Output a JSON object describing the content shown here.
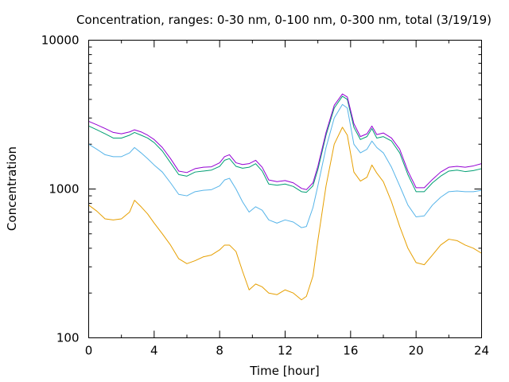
{
  "chart_data": {
    "type": "line",
    "title": "Concentration, ranges: 0-30 nm, 0-100 nm, 0-300 nm, total (3/19/19)",
    "xlabel": "Time [hour]",
    "ylabel": "Concentration",
    "xlim": [
      0,
      24
    ],
    "ylim": [
      100,
      10000
    ],
    "yscale": "log",
    "xticks": [
      0,
      4,
      8,
      12,
      16,
      20,
      24
    ],
    "xtick_labels": [
      "0",
      "4",
      "8",
      "12",
      "16",
      "20",
      "24"
    ],
    "yticks": [
      100,
      1000,
      10000
    ],
    "ytick_labels": [
      "100",
      "1000",
      "10000"
    ],
    "grid": false,
    "legend": "none",
    "series": [
      {
        "color": "#e69f00",
        "x": [
          0,
          0.5,
          1,
          1.5,
          2,
          2.5,
          2.8,
          3.2,
          3.6,
          4,
          4.5,
          5,
          5.5,
          6,
          6.5,
          7,
          7.5,
          8,
          8.3,
          8.6,
          9,
          9.4,
          9.8,
          10.2,
          10.6,
          11,
          11.5,
          12,
          12.5,
          13,
          13.3,
          13.7,
          14,
          14.5,
          15,
          15.5,
          15.8,
          16.2,
          16.6,
          17,
          17.3,
          17.6,
          18,
          18.5,
          19,
          19.5,
          20,
          20.5,
          21,
          21.5,
          22,
          22.5,
          23,
          23.5,
          24
        ],
        "y": [
          780,
          710,
          630,
          620,
          630,
          700,
          840,
          760,
          680,
          590,
          500,
          420,
          340,
          315,
          330,
          350,
          360,
          390,
          420,
          420,
          380,
          280,
          210,
          230,
          220,
          200,
          195,
          210,
          200,
          180,
          190,
          260,
          450,
          1050,
          2000,
          2600,
          2300,
          1300,
          1130,
          1200,
          1450,
          1280,
          1120,
          820,
          560,
          400,
          320,
          310,
          360,
          420,
          460,
          450,
          420,
          400,
          370
        ]
      },
      {
        "color": "#56b4e9",
        "x": [
          0,
          0.5,
          1,
          1.5,
          2,
          2.5,
          2.8,
          3.2,
          3.6,
          4,
          4.5,
          5,
          5.5,
          6,
          6.5,
          7,
          7.5,
          8,
          8.3,
          8.6,
          9,
          9.4,
          9.8,
          10.2,
          10.6,
          11,
          11.5,
          12,
          12.5,
          13,
          13.3,
          13.7,
          14,
          14.5,
          15,
          15.5,
          15.8,
          16.2,
          16.6,
          17,
          17.3,
          17.6,
          18,
          18.5,
          19,
          19.5,
          20,
          20.5,
          21,
          21.5,
          22,
          22.5,
          23,
          23.5,
          24
        ],
        "y": [
          2000,
          1850,
          1700,
          1650,
          1650,
          1750,
          1900,
          1750,
          1600,
          1450,
          1300,
          1100,
          920,
          900,
          960,
          980,
          990,
          1050,
          1150,
          1180,
          1000,
          820,
          700,
          760,
          720,
          620,
          590,
          620,
          600,
          550,
          560,
          750,
          1050,
          1900,
          3000,
          3700,
          3500,
          2000,
          1750,
          1850,
          2100,
          1900,
          1750,
          1400,
          1050,
          780,
          650,
          660,
          780,
          880,
          960,
          970,
          960,
          960,
          980
        ]
      },
      {
        "color": "#009e73",
        "x": [
          0,
          0.5,
          1,
          1.5,
          2,
          2.5,
          2.8,
          3.2,
          3.6,
          4,
          4.5,
          5,
          5.5,
          6,
          6.5,
          7,
          7.5,
          8,
          8.3,
          8.6,
          9,
          9.4,
          9.8,
          10.2,
          10.6,
          11,
          11.5,
          12,
          12.5,
          13,
          13.3,
          13.7,
          14,
          14.5,
          15,
          15.5,
          15.8,
          16.2,
          16.6,
          17,
          17.3,
          17.6,
          18,
          18.5,
          19,
          19.5,
          20,
          20.5,
          21,
          21.5,
          22,
          22.5,
          23,
          23.5,
          24
        ],
        "y": [
          2650,
          2500,
          2350,
          2200,
          2200,
          2300,
          2400,
          2300,
          2200,
          2050,
          1800,
          1500,
          1250,
          1220,
          1300,
          1320,
          1340,
          1420,
          1560,
          1600,
          1420,
          1380,
          1400,
          1480,
          1320,
          1080,
          1060,
          1080,
          1040,
          960,
          950,
          1050,
          1350,
          2300,
          3500,
          4200,
          4000,
          2600,
          2150,
          2250,
          2550,
          2200,
          2250,
          2100,
          1750,
          1250,
          960,
          960,
          1100,
          1220,
          1320,
          1340,
          1310,
          1330,
          1370
        ]
      },
      {
        "color": "#9400d3",
        "x": [
          0,
          0.5,
          1,
          1.5,
          2,
          2.5,
          2.8,
          3.2,
          3.6,
          4,
          4.5,
          5,
          5.5,
          6,
          6.5,
          7,
          7.5,
          8,
          8.3,
          8.6,
          9,
          9.4,
          9.8,
          10.2,
          10.6,
          11,
          11.5,
          12,
          12.5,
          13,
          13.3,
          13.7,
          14,
          14.5,
          15,
          15.5,
          15.8,
          16.2,
          16.6,
          17,
          17.3,
          17.6,
          18,
          18.5,
          19,
          19.5,
          20,
          20.5,
          21,
          21.5,
          22,
          22.5,
          23,
          23.5,
          24
        ],
        "y": [
          2850,
          2700,
          2550,
          2400,
          2350,
          2420,
          2500,
          2420,
          2300,
          2150,
          1900,
          1600,
          1320,
          1290,
          1370,
          1400,
          1410,
          1500,
          1650,
          1700,
          1500,
          1460,
          1480,
          1560,
          1400,
          1150,
          1120,
          1140,
          1100,
          1010,
          990,
          1100,
          1420,
          2400,
          3650,
          4350,
          4150,
          2750,
          2250,
          2350,
          2650,
          2320,
          2380,
          2200,
          1850,
          1320,
          1020,
          1020,
          1160,
          1300,
          1400,
          1420,
          1400,
          1430,
          1480
        ]
      }
    ]
  }
}
